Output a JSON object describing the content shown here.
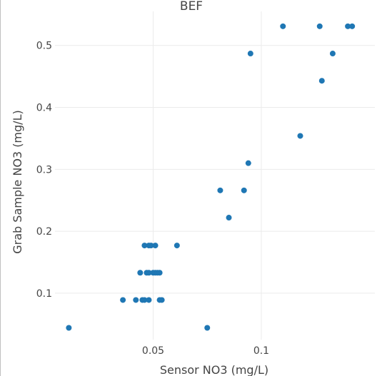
{
  "chart_data": {
    "type": "scatter",
    "title": "BEF",
    "xlabel": "Sensor NO3 (mg/L)",
    "ylabel": "Grab Sample NO3 (mg/L)",
    "xlim": [
      0.0046,
      0.1525
    ],
    "ylim": [
      0.025,
      0.555
    ],
    "x_ticks": [
      0.05,
      0.1
    ],
    "x_tick_labels": [
      "0.05",
      "0.1"
    ],
    "y_ticks": [
      0.1,
      0.2,
      0.3,
      0.4,
      0.5
    ],
    "y_tick_labels": [
      "0.1",
      "0.2",
      "0.3",
      "0.4",
      "0.5"
    ],
    "grid": true,
    "marker_color": "#1f77b4",
    "series": [
      {
        "points": [
          [
            0.011,
            0.044
          ],
          [
            0.075,
            0.044
          ],
          [
            0.036,
            0.089
          ],
          [
            0.042,
            0.089
          ],
          [
            0.045,
            0.089
          ],
          [
            0.046,
            0.089
          ],
          [
            0.048,
            0.089
          ],
          [
            0.053,
            0.089
          ],
          [
            0.054,
            0.089
          ],
          [
            0.044,
            0.133
          ],
          [
            0.047,
            0.133
          ],
          [
            0.048,
            0.133
          ],
          [
            0.05,
            0.133
          ],
          [
            0.051,
            0.133
          ],
          [
            0.052,
            0.133
          ],
          [
            0.053,
            0.133
          ],
          [
            0.046,
            0.177
          ],
          [
            0.048,
            0.177
          ],
          [
            0.049,
            0.177
          ],
          [
            0.051,
            0.177
          ],
          [
            0.061,
            0.177
          ],
          [
            0.085,
            0.222
          ],
          [
            0.081,
            0.266
          ],
          [
            0.092,
            0.266
          ],
          [
            0.094,
            0.31
          ],
          [
            0.118,
            0.354
          ],
          [
            0.128,
            0.443
          ],
          [
            0.095,
            0.487
          ],
          [
            0.133,
            0.487
          ],
          [
            0.11,
            0.531
          ],
          [
            0.127,
            0.531
          ],
          [
            0.14,
            0.531
          ],
          [
            0.142,
            0.531
          ]
        ]
      }
    ]
  }
}
